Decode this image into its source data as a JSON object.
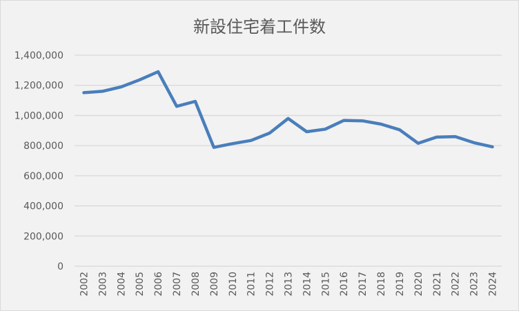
{
  "chart_data": {
    "type": "line",
    "title": "新設住宅着工件数",
    "xlabel": "",
    "ylabel": "",
    "categories": [
      "2002",
      "2003",
      "2004",
      "2005",
      "2006",
      "2007",
      "2008",
      "2009",
      "2010",
      "2011",
      "2012",
      "2013",
      "2014",
      "2015",
      "2016",
      "2017",
      "2018",
      "2019",
      "2020",
      "2021",
      "2022",
      "2023",
      "2024"
    ],
    "series": [
      {
        "values": [
          1151016,
          1160083,
          1189049,
          1236175,
          1290391,
          1060741,
          1093519,
          788410,
          813126,
          834117,
          882797,
          980025,
          892261,
          909299,
          967237,
          964641,
          942370,
          905123,
          815340,
          856484,
          859529,
          819623,
          792098
        ]
      }
    ],
    "ylim": [
      0,
      1400000
    ],
    "yticks": [
      0,
      200000,
      400000,
      600000,
      800000,
      1000000,
      1200000,
      1400000
    ],
    "ytick_labels": [
      "0",
      "200,000",
      "400,000",
      "600,000",
      "800,000",
      "1,000,000",
      "1,200,000",
      "1,400,000"
    ],
    "grid": "horizontal",
    "legend": "none",
    "colors": {
      "line": "#4a7ebb",
      "background": "#f2f2f2",
      "grid": "#d9d9d9",
      "text": "#595959"
    }
  }
}
